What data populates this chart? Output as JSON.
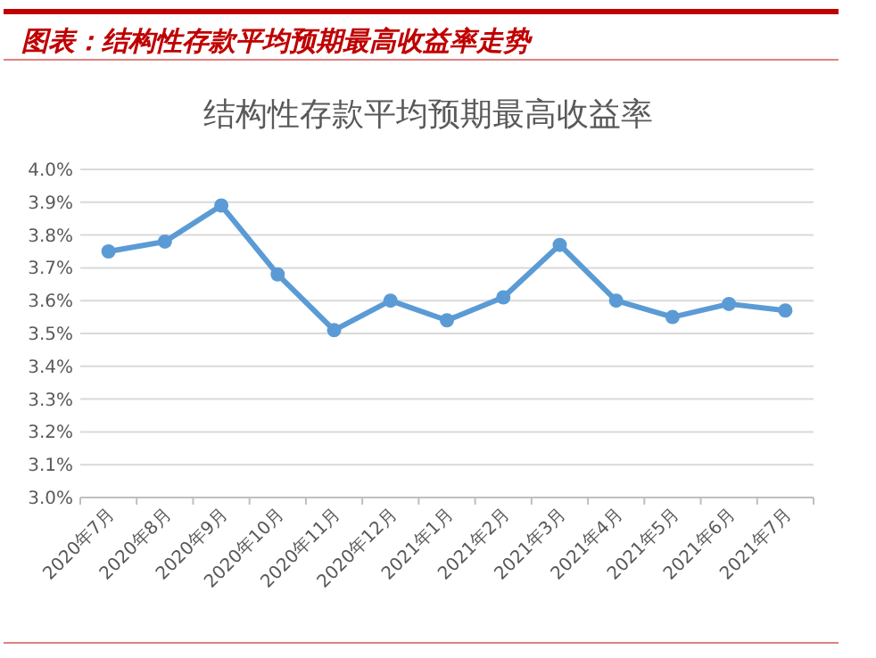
{
  "chart_data": {
    "type": "line",
    "title": "图表：结构性存款平均预期最高收益率走势",
    "subtitle": "结构性存款平均预期最高收益率",
    "categories": [
      "2020年7月",
      "2020年8月",
      "2020年9月",
      "2020年10月",
      "2020年11月",
      "2020年12月",
      "2021年1月",
      "2021年2月",
      "2021年3月",
      "2021年4月",
      "2021年5月",
      "2021年6月",
      "2021年7月"
    ],
    "series": [
      {
        "color": "#5b9bd5",
        "values": [
          3.75,
          3.78,
          3.89,
          3.68,
          3.51,
          3.6,
          3.54,
          3.61,
          3.77,
          3.6,
          3.55,
          3.59,
          3.57
        ]
      }
    ],
    "ylim": [
      3.0,
      4.0
    ],
    "yticks": [
      {
        "value": 3.0,
        "label": "3.0%"
      },
      {
        "value": 3.1,
        "label": "3.1%"
      },
      {
        "value": 3.2,
        "label": "3.2%"
      },
      {
        "value": 3.3,
        "label": "3.3%"
      },
      {
        "value": 3.4,
        "label": "3.4%"
      },
      {
        "value": 3.5,
        "label": "3.5%"
      },
      {
        "value": 3.6,
        "label": "3.6%"
      },
      {
        "value": 3.7,
        "label": "3.7%"
      },
      {
        "value": 3.8,
        "label": "3.8%"
      },
      {
        "value": 3.9,
        "label": "3.9%"
      },
      {
        "value": 4.0,
        "label": "4.0%"
      }
    ],
    "grid": "y",
    "marker": "circle",
    "line_style": "solid"
  }
}
